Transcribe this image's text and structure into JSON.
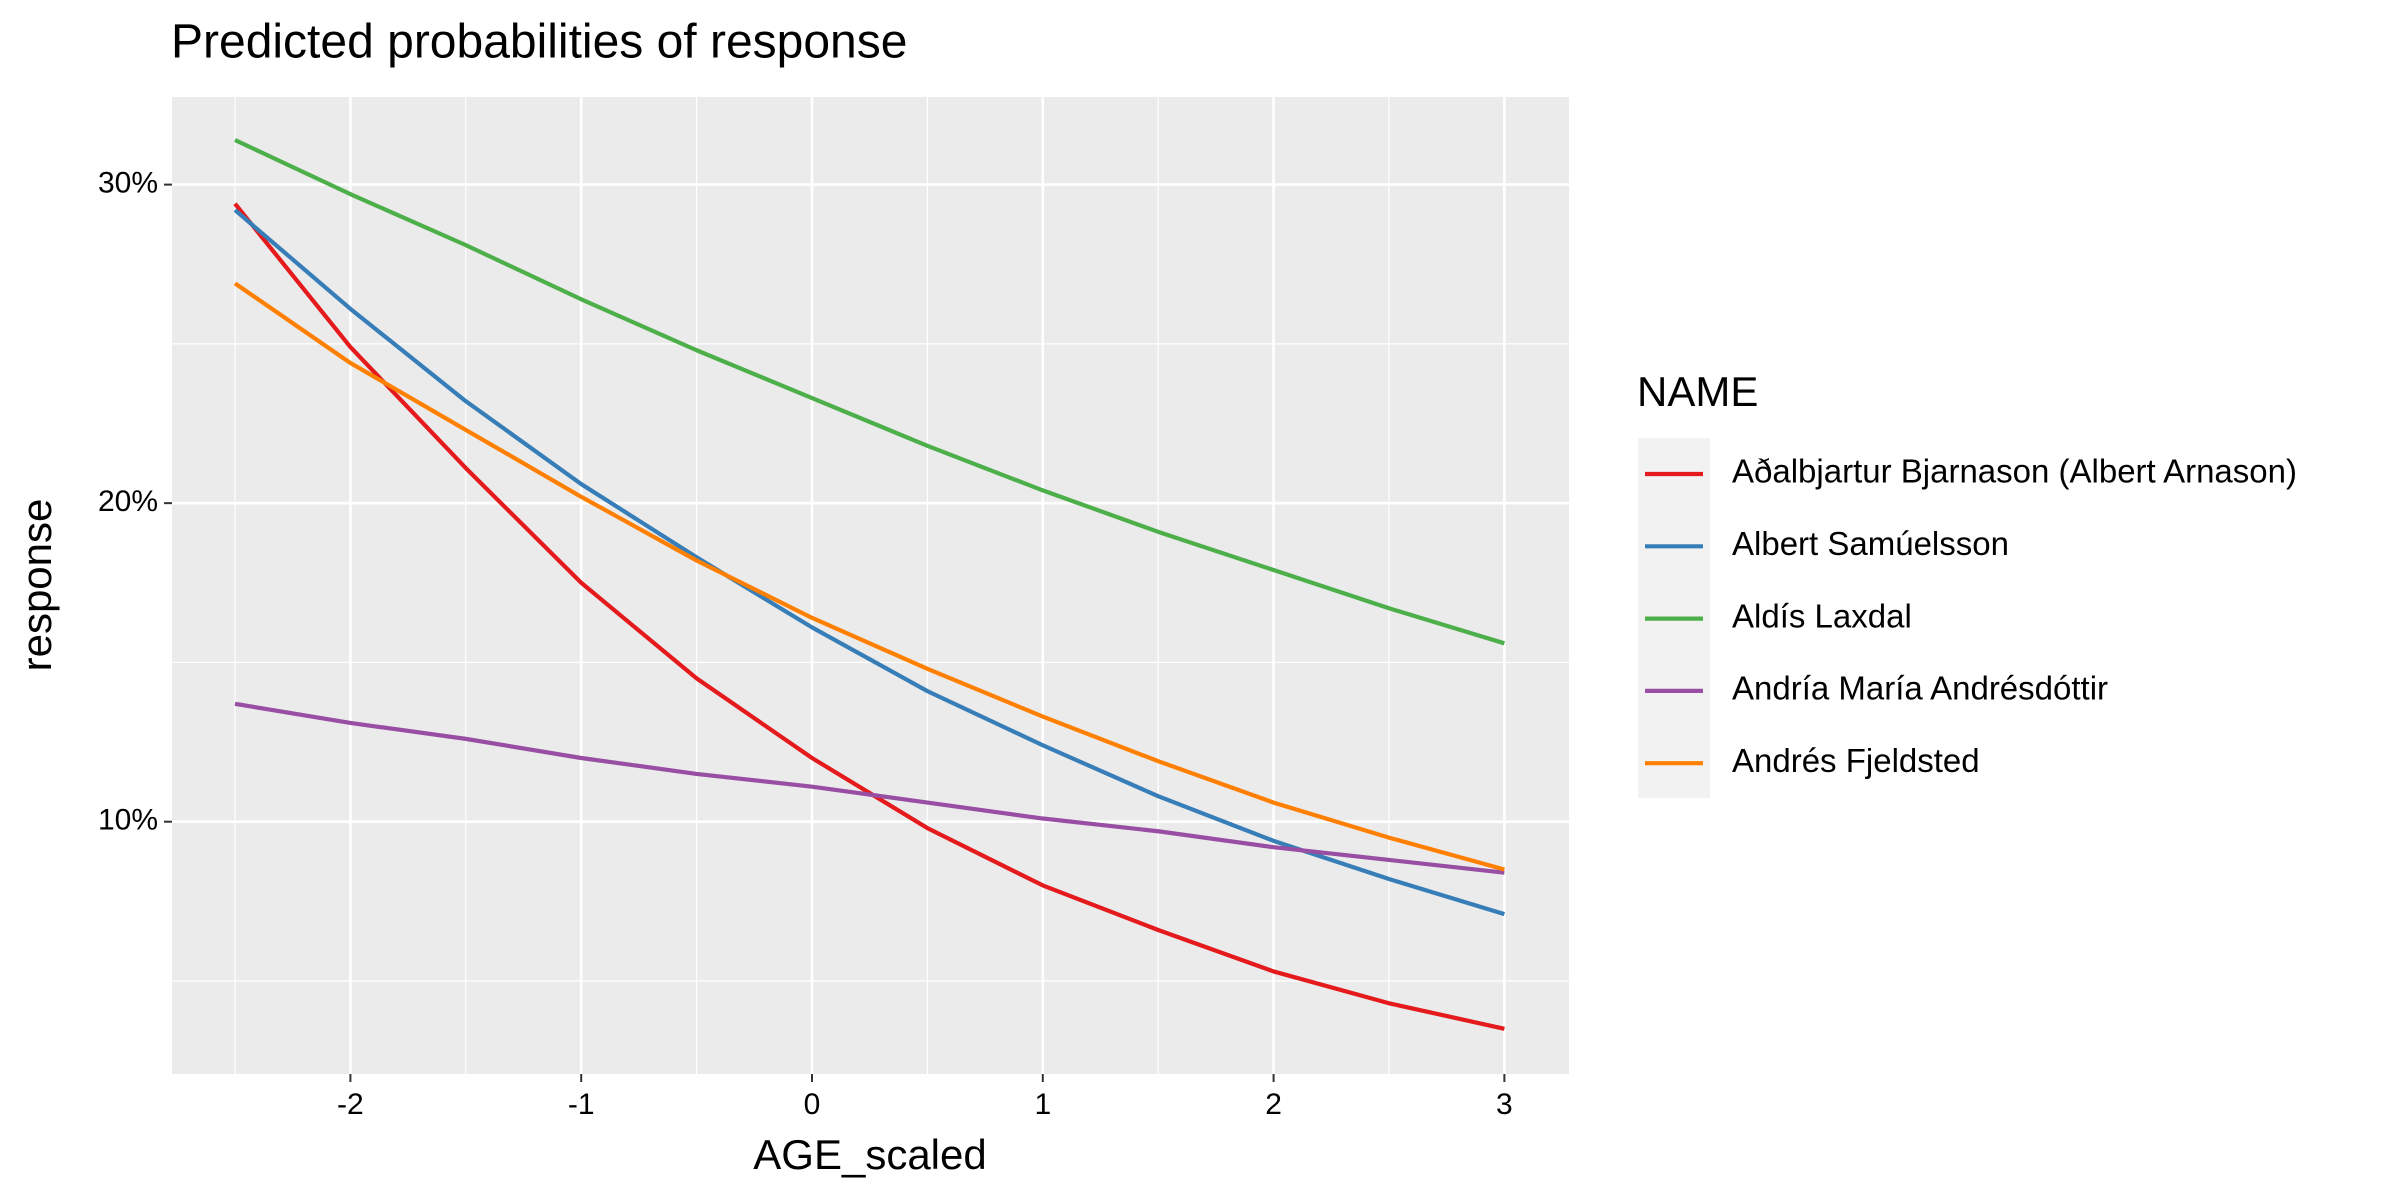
{
  "chart_data": {
    "type": "line",
    "title": "Predicted probabilities of response",
    "x_label": "AGE_scaled",
    "y_label": "response",
    "legend_title": "NAME",
    "x": [
      -2.5,
      -2,
      -1.5,
      -1,
      -0.5,
      0,
      0.5,
      1,
      1.5,
      2,
      2.5,
      3
    ],
    "series": [
      {
        "name": "Aðalbjartur Bjarnason (Albert Arnason)",
        "color": "#e41a1c",
        "values": [
          29.4,
          24.9,
          21.1,
          17.5,
          14.5,
          12.0,
          9.8,
          8.0,
          6.6,
          5.3,
          4.3,
          3.5
        ]
      },
      {
        "name": "Albert Samúelsson",
        "color": "#377eb8",
        "values": [
          29.2,
          26.1,
          23.2,
          20.6,
          18.3,
          16.1,
          14.1,
          12.4,
          10.8,
          9.4,
          8.2,
          7.1
        ]
      },
      {
        "name": "Aldís Laxdal",
        "color": "#4daf4a",
        "values": [
          31.4,
          29.7,
          28.1,
          26.4,
          24.8,
          23.3,
          21.8,
          20.4,
          19.1,
          17.9,
          16.7,
          15.6
        ]
      },
      {
        "name": "Andría María Andrésdóttir",
        "color": "#984ea3",
        "values": [
          13.7,
          13.1,
          12.6,
          12.0,
          11.5,
          11.1,
          10.6,
          10.1,
          9.7,
          9.2,
          8.8,
          8.4
        ]
      },
      {
        "name": "Andrés Fjeldsted",
        "color": "#ff7f00",
        "values": [
          26.9,
          24.4,
          22.3,
          20.2,
          18.2,
          16.4,
          14.8,
          13.3,
          11.9,
          10.6,
          9.5,
          8.5
        ]
      }
    ],
    "xlim": [
      -2.773,
      3.28
    ],
    "xticks": [
      -2,
      -1,
      0,
      1,
      2,
      3
    ],
    "x_minor_ticks": [
      -2.5,
      -1.5,
      -0.5,
      0.5,
      1.5,
      2.5
    ],
    "ylim": [
      2.08,
      32.75
    ],
    "yticks": [
      {
        "value": 10,
        "label": "10%"
      },
      {
        "value": 20,
        "label": "20%"
      },
      {
        "value": 30,
        "label": "30%"
      }
    ],
    "y_minor_ticks": [
      5,
      15,
      25
    ],
    "grid": true,
    "legend_position": "right"
  }
}
